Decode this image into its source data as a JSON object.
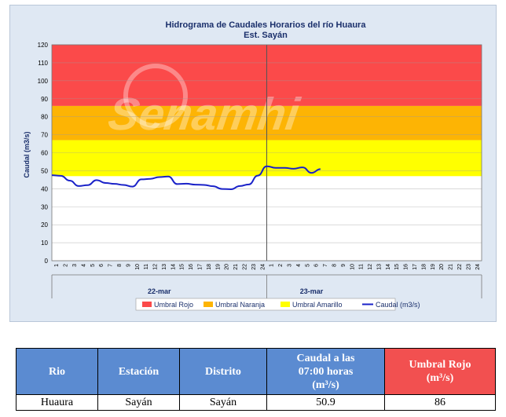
{
  "chart_data": {
    "type": "line",
    "title": "Hidrograma de Caudales Horarios del río Huaura",
    "subtitle": "Est. Sayán",
    "ylabel": "Caudal  (m3/s)",
    "xlabel": "",
    "ylim": [
      0,
      120
    ],
    "yticks": [
      0,
      10,
      20,
      30,
      40,
      50,
      60,
      70,
      80,
      90,
      100,
      110,
      120
    ],
    "x_tick_labels": [
      "1",
      "2",
      "3",
      "4",
      "5",
      "6",
      "7",
      "8",
      "9",
      "10",
      "11",
      "12",
      "13",
      "14",
      "15",
      "16",
      "17",
      "18",
      "19",
      "20",
      "21",
      "22",
      "23",
      "24",
      "1",
      "2",
      "3",
      "4",
      "5",
      "6",
      "7",
      "8",
      "9",
      "10",
      "11",
      "12",
      "13",
      "14",
      "15",
      "16",
      "17",
      "18",
      "19",
      "20",
      "21",
      "22",
      "23",
      "24"
    ],
    "day_labels": [
      "22-mar",
      "23-mar"
    ],
    "thresholds": [
      {
        "name": "Umbral Rojo",
        "from": 86,
        "to": 120,
        "color": "#fb4a4a"
      },
      {
        "name": "Umbral Naranja",
        "from": 67,
        "to": 86,
        "color": "#fdb404"
      },
      {
        "name": "Umbral Amarillo",
        "from": 47,
        "to": 67,
        "color": "#ffff00"
      }
    ],
    "series": [
      {
        "name": "Caudal (m3/s)",
        "color": "#1a22c8",
        "x": [
          1,
          2,
          3,
          4,
          5,
          6,
          7,
          8,
          9,
          10,
          11,
          12,
          13,
          14,
          15,
          16,
          17,
          18,
          19,
          20,
          21,
          22,
          23,
          24,
          25,
          26,
          27,
          28,
          29,
          30,
          31
        ],
        "values": [
          47.5,
          47.2,
          44.5,
          41.5,
          42.0,
          44.8,
          43.2,
          42.7,
          42.1,
          41.2,
          45.2,
          45.5,
          46.5,
          46.8,
          42.6,
          42.8,
          42.3,
          42.1,
          41.4,
          39.9,
          39.7,
          41.5,
          42.4,
          47.3,
          52.5,
          51.6,
          51.6,
          51.1,
          51.9,
          48.8,
          50.9
        ]
      }
    ],
    "watermark": "Senamhi",
    "grid": "horizontal",
    "legend_position": "bottom"
  },
  "legend": [
    {
      "label": "Umbral Rojo",
      "kind": "box",
      "color": "#fb4a4a"
    },
    {
      "label": "Umbral Naranja",
      "kind": "box",
      "color": "#fdb404"
    },
    {
      "label": "Umbral Amarillo",
      "kind": "box",
      "color": "#ffff00"
    },
    {
      "label": "Caudal (m3/s)",
      "kind": "line",
      "color": "#1a22c8"
    }
  ],
  "table": {
    "headers": [
      "Rio",
      "Estación",
      "Distrito",
      "Caudal a las 07:00 horas (m³/s)",
      "Umbral Rojo (m³/s)"
    ],
    "header_caudal_line1": "Caudal a las",
    "header_caudal_line2": "07:00 horas",
    "header_caudal_line3": "(m³/s)",
    "header_rojo_line1": "Umbral Rojo",
    "header_rojo_line2": "(m³/s)",
    "row": [
      "Huaura",
      "Sayán",
      "Sayán",
      "50.9",
      "86"
    ]
  }
}
